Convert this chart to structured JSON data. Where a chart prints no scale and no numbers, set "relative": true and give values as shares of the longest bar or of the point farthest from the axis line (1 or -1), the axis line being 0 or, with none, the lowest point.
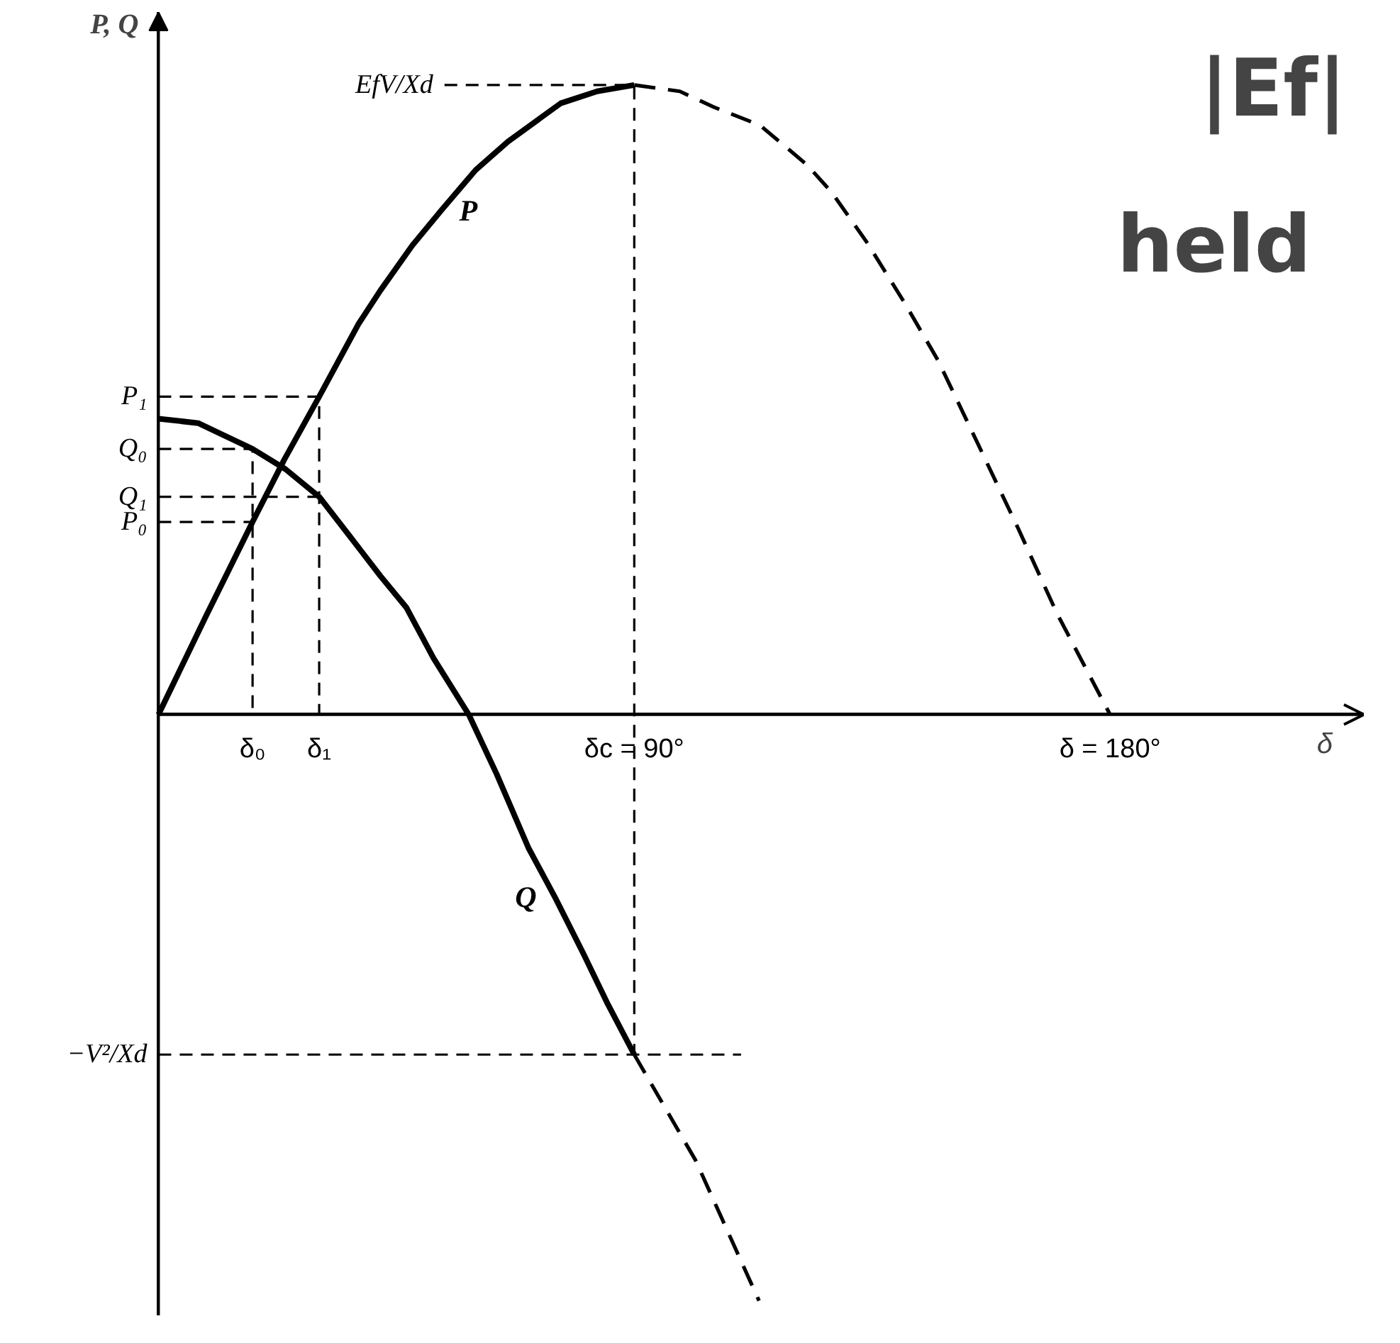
{
  "chart_data": {
    "type": "line",
    "xlabel": "δ",
    "ylabel": "P, Q",
    "relative": true,
    "line_style": "solid",
    "xlim": [
      0,
      228
    ],
    "xticks": [
      {
        "value": 17.8,
        "label": "δ₀"
      },
      {
        "value": 30.4,
        "label": "δ₁"
      },
      {
        "value": 90,
        "label": "δc = 90°"
      },
      {
        "value": 180,
        "label": "δ = 180°"
      }
    ],
    "series": [
      {
        "name": "P",
        "color": "#000000",
        "x": [
          0,
          8.9,
          17.8,
          23.8,
          30.4,
          37.8,
          42.0,
          48,
          53.4,
          60,
          66.1,
          71,
          76.1,
          83,
          90
        ],
        "values": [
          0,
          0.155,
          0.306,
          0.405,
          0.505,
          0.62,
          0.674,
          0.745,
          0.8,
          0.865,
          0.91,
          0.94,
          0.971,
          0.99,
          1
        ]
      },
      {
        "color": "#000000",
        "line_style": "dashed",
        "x": [
          90,
          98.6,
          105,
          113.8,
          122.7,
          127.3,
          134,
          141.2,
          147.5,
          155,
          162.6,
          170,
          180
        ],
        "values": [
          1,
          0.99,
          0.965,
          0.936,
          0.873,
          0.83,
          0.75,
          0.653,
          0.562,
          0.43,
          0.296,
          0.16,
          0
        ]
      },
      {
        "name": "Q",
        "color": "#000000",
        "x": [
          0,
          7.5,
          12,
          17.8,
          24,
          30.4,
          36.4,
          42,
          46.9,
          52,
          58.7,
          64,
          70,
          75,
          80.4,
          85,
          90
        ],
        "values": [
          0.47,
          0.463,
          0.445,
          0.422,
          0.39,
          0.346,
          0.281,
          0.22,
          0.17,
          0.09,
          0,
          -0.095,
          -0.212,
          -0.29,
          -0.38,
          -0.46,
          -0.54
        ]
      },
      {
        "color": "#000000",
        "line_style": "dashed",
        "x": [
          90,
          101.6,
          113.6
        ],
        "values": [
          -0.54,
          -0.708,
          -0.931
        ]
      },
      {
        "name": "EfV/Xd",
        "color": "#000000",
        "line_style": "dashed",
        "x": [
          54.1,
          90,
          90
        ],
        "values": [
          1,
          1,
          -0.54
        ]
      },
      {
        "name": "−V²/Xd",
        "color": "#000000",
        "line_style": "dashed",
        "x": [
          0,
          110.2
        ],
        "values": [
          -0.54,
          -0.54
        ]
      },
      {
        "name": "P₁",
        "color": "#000000",
        "line_style": "dashed",
        "x": [
          0,
          30.4,
          30.4
        ],
        "values": [
          0.505,
          0.505,
          0
        ]
      },
      {
        "name": "Q₁",
        "color": "#000000",
        "line_style": "dashed",
        "x": [
          0,
          30.4
        ],
        "values": [
          0.346,
          0.346
        ]
      },
      {
        "name": "Q₀",
        "color": "#000000",
        "line_style": "dashed",
        "x": [
          0,
          17.8,
          17.8
        ],
        "values": [
          0.422,
          0.422,
          0
        ]
      },
      {
        "name": "P₀",
        "color": "#000000",
        "line_style": "dashed",
        "x": [
          0,
          17.8
        ],
        "values": [
          0.306,
          0.306
        ]
      }
    ],
    "annotations": [
      "|Ef|",
      "held"
    ]
  }
}
